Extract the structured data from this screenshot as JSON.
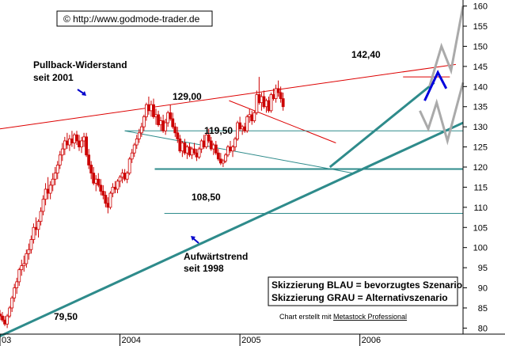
{
  "chart_data": {
    "type": "candlestick",
    "source_label": "© http://www.godmode-trader.de",
    "footer": {
      "prefix": "Chart erstellt mit ",
      "link": "Metastock Professional"
    },
    "legend_lines": [
      "Skizzierung BLAU = bevorzugtes Szenario",
      "Skizzierung GRAU = Alternativszenario"
    ],
    "colors": {
      "candles": "#cc0000",
      "resistance": "#dd0000",
      "support": "#2e8b8b",
      "preferred": "#0000dd",
      "alternative": "#aaaaaa",
      "arrow": "#0000cc"
    },
    "y_axis": {
      "ticks": [
        80,
        85,
        90,
        95,
        100,
        105,
        110,
        115,
        120,
        125,
        130,
        135,
        140,
        145,
        150,
        155,
        160
      ],
      "ylim": [
        78.5,
        161.5
      ]
    },
    "x_axis": {
      "ticks": [
        "03",
        "2004",
        "2005",
        "2006"
      ],
      "xlim": [
        2003.0,
        2006.86
      ]
    },
    "annotations": {
      "pullback_label": [
        "Pullback-Widerstand",
        "seit 2001"
      ],
      "uptrend_label": [
        "Aufwärtstrend",
        "seit 1998"
      ],
      "level_129": "129,00",
      "level_119": "119,50",
      "level_108": "108,50",
      "level_142": "142,40",
      "level_79": "79,50"
    },
    "lines": {
      "pullback_resistance": [
        [
          2003.0,
          129.5
        ],
        [
          2006.8,
          145.5
        ]
      ],
      "uptrend_support": [
        [
          2003.0,
          78.0
        ],
        [
          2006.86,
          131.0
        ]
      ],
      "channel_upper": [
        [
          2004.91,
          136.5
        ],
        [
          2005.8,
          126.0
        ]
      ],
      "channel_lower": [
        [
          2004.04,
          129.0
        ],
        [
          2005.94,
          118.5
        ]
      ],
      "short_support": [
        [
          2005.75,
          120.0
        ],
        [
          2006.62,
          141.0
        ]
      ],
      "h_129": [
        [
          2004.04,
          129.0
        ],
        [
          2006.86,
          129.0
        ]
      ],
      "h_119": [
        [
          2004.29,
          119.5
        ],
        [
          2006.86,
          119.5
        ]
      ],
      "h_108": [
        [
          2004.37,
          108.5
        ],
        [
          2006.86,
          108.5
        ]
      ],
      "h_142": [
        [
          2006.36,
          142.4
        ],
        [
          2006.75,
          142.4
        ]
      ]
    },
    "scenarios": {
      "blue": [
        [
          2006.54,
          136.5
        ],
        [
          2006.65,
          143.5
        ],
        [
          2006.72,
          139.5
        ]
      ],
      "gray_up": [
        [
          2006.58,
          140.0
        ],
        [
          2006.68,
          150.0
        ],
        [
          2006.76,
          144.0
        ],
        [
          2006.86,
          160.0
        ]
      ],
      "gray_down": [
        [
          2006.5,
          134.0
        ],
        [
          2006.57,
          129.5
        ],
        [
          2006.64,
          136.0
        ],
        [
          2006.73,
          126.5
        ],
        [
          2006.86,
          141.0
        ]
      ]
    },
    "candles": [
      [
        2003.0,
        83.5,
        84.5,
        82.0,
        83.0
      ],
      [
        2003.02,
        83.0,
        84.0,
        81.5,
        82.0
      ],
      [
        2003.04,
        82.0,
        83.0,
        80.5,
        81.0
      ],
      [
        2003.06,
        81.0,
        83.5,
        80.0,
        83.0
      ],
      [
        2003.08,
        83.0,
        85.5,
        82.5,
        85.0
      ],
      [
        2003.1,
        85.0,
        88.0,
        84.0,
        87.5
      ],
      [
        2003.12,
        87.5,
        91.0,
        86.5,
        90.0
      ],
      [
        2003.14,
        90.0,
        92.5,
        88.5,
        91.5
      ],
      [
        2003.16,
        91.5,
        95.0,
        90.5,
        94.5
      ],
      [
        2003.18,
        94.5,
        97.0,
        93.0,
        95.5
      ],
      [
        2003.2,
        95.5,
        98.0,
        94.0,
        96.0
      ],
      [
        2003.22,
        96.0,
        99.5,
        95.0,
        98.5
      ],
      [
        2003.24,
        98.5,
        101.0,
        97.0,
        99.5
      ],
      [
        2003.26,
        99.5,
        103.0,
        98.5,
        102.0
      ],
      [
        2003.28,
        102.0,
        106.0,
        101.0,
        105.0
      ],
      [
        2003.3,
        105.0,
        107.5,
        103.0,
        104.5
      ],
      [
        2003.32,
        104.5,
        107.0,
        102.5,
        106.5
      ],
      [
        2003.34,
        106.5,
        110.0,
        105.5,
        109.0
      ],
      [
        2003.36,
        109.0,
        113.0,
        108.0,
        112.0
      ],
      [
        2003.38,
        112.0,
        116.0,
        110.5,
        114.5
      ],
      [
        2003.4,
        114.5,
        117.5,
        112.0,
        113.5
      ],
      [
        2003.42,
        113.5,
        116.5,
        112.0,
        115.5
      ],
      [
        2003.44,
        115.5,
        118.5,
        114.0,
        117.0
      ],
      [
        2003.46,
        117.0,
        120.0,
        115.5,
        118.5
      ],
      [
        2003.48,
        118.5,
        121.5,
        117.0,
        120.5
      ],
      [
        2003.5,
        120.5,
        124.0,
        119.5,
        123.0
      ],
      [
        2003.52,
        123.0,
        126.0,
        121.5,
        124.5
      ],
      [
        2003.54,
        124.5,
        127.5,
        123.0,
        126.5
      ],
      [
        2003.56,
        126.5,
        128.5,
        124.5,
        125.5
      ],
      [
        2003.58,
        125.5,
        128.0,
        124.0,
        127.0
      ],
      [
        2003.6,
        127.0,
        129.0,
        125.0,
        126.0
      ],
      [
        2003.62,
        126.0,
        128.5,
        124.5,
        128.0
      ],
      [
        2003.64,
        128.0,
        129.0,
        125.5,
        126.5
      ],
      [
        2003.66,
        126.5,
        128.0,
        124.0,
        125.0
      ],
      [
        2003.68,
        125.0,
        127.5,
        123.5,
        126.5
      ],
      [
        2003.7,
        126.5,
        128.5,
        125.0,
        127.5
      ],
      [
        2003.72,
        127.5,
        128.5,
        122.5,
        123.0
      ],
      [
        2003.74,
        123.0,
        124.5,
        119.5,
        120.5
      ],
      [
        2003.76,
        120.5,
        121.5,
        117.0,
        118.5
      ],
      [
        2003.78,
        118.5,
        120.0,
        115.5,
        116.0
      ],
      [
        2003.8,
        116.0,
        118.0,
        114.0,
        117.0
      ],
      [
        2003.82,
        117.0,
        118.5,
        115.0,
        115.5
      ],
      [
        2003.84,
        115.5,
        117.0,
        113.0,
        114.0
      ],
      [
        2003.86,
        114.0,
        115.5,
        112.0,
        113.0
      ],
      [
        2003.88,
        113.0,
        114.0,
        110.0,
        111.0
      ],
      [
        2003.9,
        111.0,
        112.5,
        108.5,
        110.0
      ],
      [
        2003.92,
        110.0,
        114.0,
        109.5,
        113.5
      ],
      [
        2003.94,
        113.5,
        116.0,
        112.5,
        115.0
      ],
      [
        2003.96,
        115.0,
        116.5,
        113.5,
        114.5
      ],
      [
        2003.98,
        114.5,
        117.0,
        113.5,
        116.5
      ],
      [
        2004.0,
        116.5,
        118.0,
        115.0,
        117.5
      ],
      [
        2004.02,
        117.5,
        119.5,
        116.0,
        118.5
      ],
      [
        2004.04,
        118.5,
        119.5,
        116.5,
        117.0
      ],
      [
        2004.06,
        117.0,
        119.0,
        116.0,
        118.5
      ],
      [
        2004.08,
        118.5,
        122.5,
        118.0,
        122.0
      ],
      [
        2004.1,
        122.0,
        124.5,
        121.0,
        123.5
      ],
      [
        2004.12,
        123.5,
        126.0,
        122.5,
        125.5
      ],
      [
        2004.14,
        125.5,
        128.0,
        124.5,
        127.0
      ],
      [
        2004.16,
        127.0,
        129.5,
        126.0,
        128.5
      ],
      [
        2004.18,
        128.5,
        131.0,
        127.5,
        130.0
      ],
      [
        2004.2,
        130.0,
        133.0,
        129.0,
        132.5
      ],
      [
        2004.22,
        132.5,
        136.0,
        131.5,
        135.5
      ],
      [
        2004.24,
        135.5,
        137.5,
        133.0,
        134.0
      ],
      [
        2004.26,
        134.0,
        136.5,
        132.5,
        135.5
      ],
      [
        2004.28,
        135.5,
        137.0,
        132.0,
        132.5
      ],
      [
        2004.3,
        132.5,
        134.5,
        130.5,
        133.0
      ],
      [
        2004.32,
        133.0,
        134.0,
        130.0,
        130.5
      ],
      [
        2004.34,
        130.5,
        132.5,
        129.0,
        131.5
      ],
      [
        2004.36,
        131.5,
        133.0,
        128.5,
        129.0
      ],
      [
        2004.38,
        129.0,
        132.0,
        128.0,
        131.0
      ],
      [
        2004.4,
        131.0,
        134.0,
        130.0,
        133.5
      ],
      [
        2004.42,
        133.5,
        135.5,
        131.5,
        132.0
      ],
      [
        2004.44,
        132.0,
        133.5,
        129.5,
        130.0
      ],
      [
        2004.46,
        130.0,
        131.0,
        127.5,
        128.5
      ],
      [
        2004.48,
        128.5,
        130.0,
        126.0,
        127.0
      ],
      [
        2004.5,
        127.0,
        128.0,
        123.5,
        124.0
      ],
      [
        2004.52,
        124.0,
        126.5,
        122.5,
        126.0
      ],
      [
        2004.54,
        126.0,
        127.0,
        123.0,
        123.5
      ],
      [
        2004.56,
        123.5,
        125.5,
        122.0,
        125.0
      ],
      [
        2004.58,
        125.0,
        126.0,
        122.5,
        123.0
      ],
      [
        2004.6,
        123.0,
        125.0,
        122.0,
        124.5
      ],
      [
        2004.62,
        124.5,
        126.0,
        123.0,
        123.5
      ],
      [
        2004.64,
        123.5,
        124.5,
        121.5,
        122.5
      ],
      [
        2004.66,
        122.5,
        125.0,
        122.0,
        124.5
      ],
      [
        2004.68,
        124.5,
        127.0,
        123.5,
        126.5
      ],
      [
        2004.7,
        126.5,
        128.0,
        124.5,
        125.0
      ],
      [
        2004.72,
        125.0,
        128.5,
        124.5,
        128.0
      ],
      [
        2004.74,
        128.0,
        129.5,
        126.0,
        126.5
      ],
      [
        2004.76,
        126.5,
        127.5,
        124.0,
        124.5
      ],
      [
        2004.78,
        124.5,
        126.0,
        123.0,
        125.5
      ],
      [
        2004.8,
        125.5,
        126.5,
        123.0,
        123.5
      ],
      [
        2004.82,
        123.5,
        124.5,
        121.5,
        122.0
      ],
      [
        2004.84,
        122.0,
        123.5,
        120.5,
        121.0
      ],
      [
        2004.86,
        121.0,
        122.0,
        120.0,
        121.5
      ],
      [
        2004.88,
        121.5,
        123.5,
        121.0,
        123.0
      ],
      [
        2004.9,
        123.0,
        125.5,
        122.5,
        125.0
      ],
      [
        2004.92,
        125.0,
        126.5,
        123.5,
        124.0
      ],
      [
        2004.94,
        124.0,
        125.5,
        122.5,
        125.0
      ],
      [
        2004.96,
        125.0,
        127.5,
        124.0,
        127.0
      ],
      [
        2004.98,
        127.0,
        131.5,
        126.5,
        131.0
      ],
      [
        2005.0,
        131.0,
        132.5,
        129.0,
        129.5
      ],
      [
        2005.02,
        129.5,
        130.5,
        128.0,
        130.0
      ],
      [
        2005.04,
        130.0,
        131.0,
        128.5,
        129.0
      ],
      [
        2005.06,
        129.0,
        133.0,
        128.5,
        132.5
      ],
      [
        2005.08,
        132.5,
        134.5,
        131.0,
        133.0
      ],
      [
        2005.1,
        133.0,
        134.0,
        130.5,
        131.5
      ],
      [
        2005.12,
        131.5,
        134.0,
        131.0,
        133.5
      ],
      [
        2005.14,
        133.5,
        139.0,
        133.0,
        138.0
      ],
      [
        2005.16,
        138.0,
        142.4,
        135.5,
        136.0
      ],
      [
        2005.18,
        136.0,
        138.5,
        134.0,
        137.5
      ],
      [
        2005.2,
        137.5,
        139.0,
        134.5,
        135.0
      ],
      [
        2005.22,
        135.0,
        137.0,
        133.5,
        136.5
      ],
      [
        2005.24,
        136.5,
        137.5,
        133.5,
        134.0
      ],
      [
        2005.26,
        134.0,
        138.5,
        133.5,
        138.0
      ],
      [
        2005.28,
        138.0,
        139.5,
        136.5,
        137.0
      ],
      [
        2005.3,
        137.0,
        140.5,
        136.0,
        139.5
      ],
      [
        2005.32,
        139.5,
        141.5,
        137.5,
        138.5
      ],
      [
        2005.34,
        138.5,
        140.0,
        136.0,
        137.0
      ],
      [
        2005.36,
        137.0,
        138.5,
        134.0,
        135.0
      ]
    ]
  }
}
